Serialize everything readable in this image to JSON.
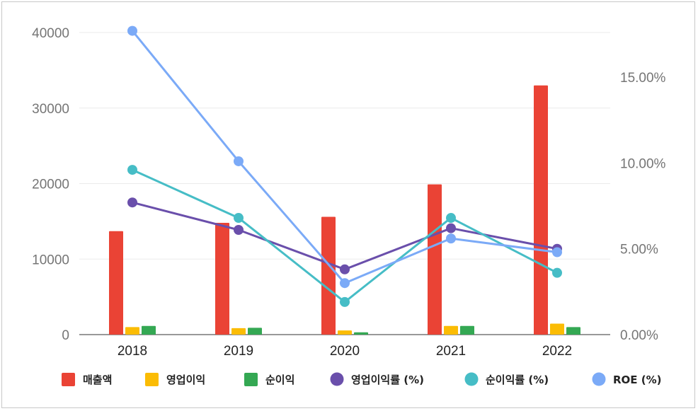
{
  "chart_data": {
    "type": "bar",
    "categories": [
      "2018",
      "2019",
      "2020",
      "2021",
      "2022"
    ],
    "bar_series": [
      {
        "name": "매출액",
        "color": "#ea4335",
        "values": [
          13700,
          14800,
          15600,
          19900,
          33000
        ]
      },
      {
        "name": "영업이익",
        "color": "#fbbc04",
        "values": [
          1000,
          850,
          550,
          1150,
          1450
        ]
      },
      {
        "name": "순이익",
        "color": "#34a853",
        "values": [
          1150,
          900,
          300,
          1150,
          1000
        ]
      }
    ],
    "line_series": [
      {
        "name": "영업이익률 (%)",
        "color": "#6a4fab",
        "values": [
          7.7,
          6.1,
          3.8,
          6.2,
          5.0
        ]
      },
      {
        "name": "순이익률 (%)",
        "color": "#46bdc6",
        "values": [
          9.6,
          6.8,
          1.9,
          6.8,
          3.6
        ]
      },
      {
        "name": "ROE (%)",
        "color": "#7baaf7",
        "values": [
          17.7,
          10.1,
          3.0,
          5.6,
          4.8
        ]
      }
    ],
    "y_left": {
      "min": 0,
      "max": 40000,
      "ticks": [
        "0",
        "10000",
        "20000",
        "30000",
        "40000"
      ]
    },
    "y_right": {
      "min": 0,
      "max": 17.6,
      "ticks": [
        "0.00%",
        "5.00%",
        "10.00%",
        "15.00%"
      ]
    },
    "grid": true,
    "legend_position": "bottom",
    "legend": [
      "매출액",
      "영업이익",
      "순이익",
      "영업이익률 (%)",
      "순이익률 (%)",
      "ROE (%)"
    ]
  }
}
